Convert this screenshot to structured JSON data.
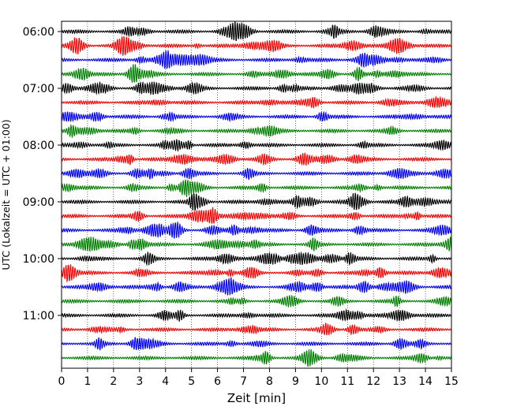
{
  "chart_data": {
    "type": "line",
    "title": "",
    "xlabel": "Zeit  [min]",
    "ylabel": "UTC (Lokalzeit = UTC + 01:00)",
    "xlim": [
      0,
      15
    ],
    "x_ticks": [
      "0",
      "1",
      "2",
      "3",
      "4",
      "5",
      "6",
      "7",
      "8",
      "9",
      "10",
      "11",
      "12",
      "13",
      "14",
      "15"
    ],
    "y_ticks": [
      "06:00",
      "07:00",
      "08:00",
      "09:00",
      "10:00",
      "11:00"
    ],
    "grid": "vertical dotted lines at each minute",
    "legend": "none",
    "colors": [
      "#000000",
      "#ff0000",
      "#0000ff",
      "#008000"
    ],
    "traces_per_hour": 4,
    "minutes_per_trace": 15,
    "traces": [
      {
        "start": "06:00",
        "color": "#000000"
      },
      {
        "start": "06:15",
        "color": "#ff0000"
      },
      {
        "start": "06:30",
        "color": "#0000ff"
      },
      {
        "start": "06:45",
        "color": "#008000"
      },
      {
        "start": "07:00",
        "color": "#000000"
      },
      {
        "start": "07:15",
        "color": "#ff0000"
      },
      {
        "start": "07:30",
        "color": "#0000ff"
      },
      {
        "start": "07:45",
        "color": "#008000"
      },
      {
        "start": "08:00",
        "color": "#000000"
      },
      {
        "start": "08:15",
        "color": "#ff0000"
      },
      {
        "start": "08:30",
        "color": "#0000ff"
      },
      {
        "start": "08:45",
        "color": "#008000"
      },
      {
        "start": "09:00",
        "color": "#000000"
      },
      {
        "start": "09:15",
        "color": "#ff0000"
      },
      {
        "start": "09:30",
        "color": "#0000ff"
      },
      {
        "start": "09:45",
        "color": "#008000"
      },
      {
        "start": "10:00",
        "color": "#000000"
      },
      {
        "start": "10:15",
        "color": "#ff0000"
      },
      {
        "start": "10:30",
        "color": "#0000ff"
      },
      {
        "start": "10:45",
        "color": "#008000"
      },
      {
        "start": "11:00",
        "color": "#000000"
      },
      {
        "start": "11:15",
        "color": "#ff0000"
      },
      {
        "start": "11:30",
        "color": "#0000ff"
      },
      {
        "start": "11:45",
        "color": "#008000"
      }
    ]
  }
}
